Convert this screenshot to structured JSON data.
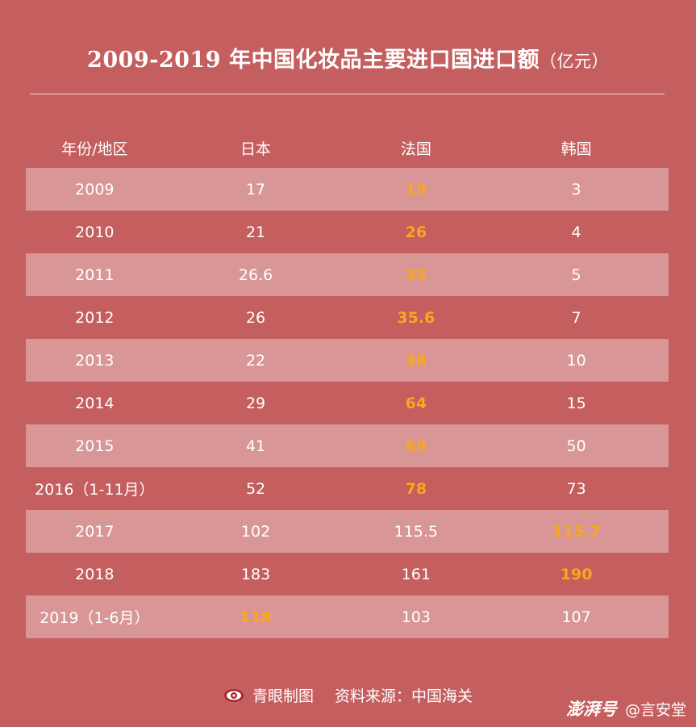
{
  "title": "2009-2019 年中国化妆品主要进口国进口额",
  "title_unit": "（亿元）",
  "chart_data": {
    "type": "table",
    "columns": [
      "年份/地区",
      "日本",
      "法国",
      "韩国"
    ],
    "rows": [
      {
        "year": "2009",
        "values": [
          "17",
          "19",
          "3"
        ],
        "highlight": 1
      },
      {
        "year": "2010",
        "values": [
          "21",
          "26",
          "4"
        ],
        "highlight": 1
      },
      {
        "year": "2011",
        "values": [
          "26.6",
          "35",
          "5"
        ],
        "highlight": 1
      },
      {
        "year": "2012",
        "values": [
          "26",
          "35.6",
          "7"
        ],
        "highlight": 1
      },
      {
        "year": "2013",
        "values": [
          "22",
          "38",
          "10"
        ],
        "highlight": 1
      },
      {
        "year": "2014",
        "values": [
          "29",
          "64",
          "15"
        ],
        "highlight": 1
      },
      {
        "year": "2015",
        "values": [
          "41",
          "69",
          "50"
        ],
        "highlight": 1
      },
      {
        "year": "2016（1-11月）",
        "values": [
          "52",
          "78",
          "73"
        ],
        "highlight": 1
      },
      {
        "year": "2017",
        "values": [
          "102",
          "115.5",
          "115.7"
        ],
        "highlight": 2
      },
      {
        "year": "2018",
        "values": [
          "183",
          "161",
          "190"
        ],
        "highlight": 2
      },
      {
        "year": "2019（1-6月）",
        "values": [
          "118",
          "103",
          "107"
        ],
        "highlight": 0
      }
    ],
    "highlight_color": "#f7a81e"
  },
  "footer": {
    "maker": "青眼制图",
    "source": "资料来源：中国海关"
  },
  "watermark": {
    "brand": "澎湃号",
    "account": "@言安堂"
  },
  "colors": {
    "background": "#c55e5e",
    "row_shade": "rgba(255,255,255,0.35)",
    "text": "#ffffff"
  }
}
